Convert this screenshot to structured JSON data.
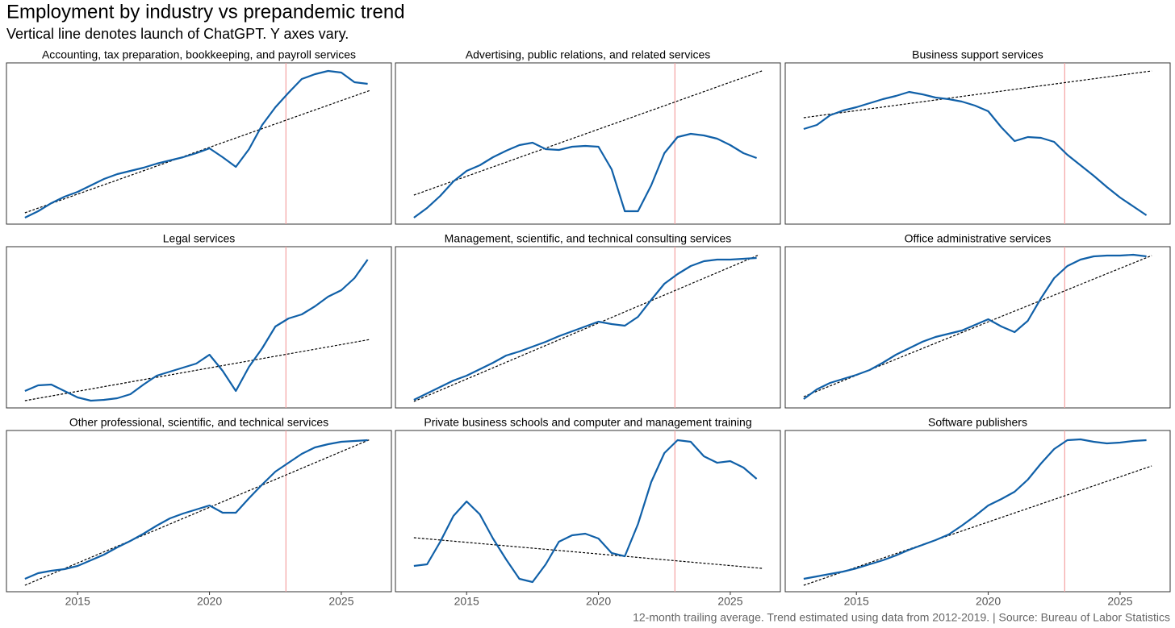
{
  "title": "Employment by industry vs prepandemic trend",
  "subtitle": "Vertical line denotes launch of ChatGPT. Y axes vary.",
  "caption": "12-month trailing average. Trend estimated using data from 2012-2019. | Source: Bureau of Labor Statistics",
  "chart_data": [
    {
      "type": "line",
      "title": "Accounting, tax preparation, bookkeeping, and payroll services",
      "x": [
        2013,
        2013.5,
        2014,
        2014.5,
        2015,
        2015.5,
        2016,
        2016.5,
        2017,
        2017.5,
        2018,
        2018.5,
        2019,
        2019.5,
        2020,
        2020.5,
        2021,
        2021.5,
        2022,
        2022.5,
        2023,
        2023.5,
        2024,
        2024.5,
        2025,
        2025.5,
        2026
      ],
      "series": [
        {
          "color": "#1060a8",
          "values": [
            4,
            8,
            13,
            17,
            20,
            24,
            28,
            31,
            33,
            35,
            37.5,
            39.5,
            41.5,
            44,
            47,
            41.5,
            35.5,
            46.5,
            61.5,
            72.5,
            81.5,
            90,
            93,
            95,
            94,
            88,
            87
          ]
        }
      ],
      "trend": {
        "x": [
          2013,
          2026.1
        ],
        "values": [
          7,
          83
        ],
        "color": "#000000",
        "dashed": true
      },
      "event_x": 2022.9,
      "event_color": "#f4a3a3",
      "xlim": [
        2012.3,
        2026.9
      ],
      "ylim": [
        0,
        100
      ]
    },
    {
      "type": "line",
      "title": "Advertising, public relations, and related services",
      "x": [
        2013,
        2013.5,
        2014,
        2014.5,
        2015,
        2015.5,
        2016,
        2016.5,
        2017,
        2017.5,
        2018,
        2018.5,
        2019,
        2019.5,
        2020,
        2020.5,
        2021,
        2021.5,
        2022,
        2022.5,
        2023,
        2023.5,
        2024,
        2024.5,
        2025,
        2025.5,
        2026
      ],
      "series": [
        {
          "color": "#1060a8",
          "values": [
            4,
            10,
            17.5,
            26.5,
            33,
            36.5,
            41.5,
            45.5,
            49,
            50.5,
            46.5,
            46,
            48,
            48.5,
            48,
            34,
            8,
            8,
            24,
            44,
            54,
            56,
            55,
            53,
            49,
            44,
            41
          ]
        }
      ],
      "trend": {
        "x": [
          2013,
          2026.2
        ],
        "values": [
          18,
          95
        ],
        "color": "#000000",
        "dashed": true
      },
      "event_x": 2022.9,
      "event_color": "#f4a3a3",
      "xlim": [
        2012.3,
        2026.9
      ],
      "ylim": [
        0,
        100
      ]
    },
    {
      "type": "line",
      "title": "Business support services",
      "x": [
        2013,
        2013.5,
        2014,
        2014.5,
        2015,
        2015.5,
        2016,
        2016.5,
        2017,
        2017.5,
        2018,
        2018.5,
        2019,
        2019.5,
        2020,
        2020.5,
        2021,
        2021.5,
        2022,
        2022.5,
        2023,
        2023.5,
        2024,
        2024.5,
        2025,
        2025.5,
        2026
      ],
      "series": [
        {
          "color": "#1060a8",
          "values": [
            59,
            61.5,
            67.5,
            70.5,
            72.5,
            75,
            77.5,
            79.5,
            82,
            80.5,
            78.5,
            77.5,
            76,
            73.5,
            70,
            60,
            51.5,
            54,
            53.5,
            51,
            43,
            36.5,
            30,
            23,
            16.5,
            11,
            5.5
          ]
        }
      ],
      "trend": {
        "x": [
          2013,
          2026.2
        ],
        "values": [
          66,
          95
        ],
        "color": "#000000",
        "dashed": true
      },
      "event_x": 2022.9,
      "event_color": "#f4a3a3",
      "xlim": [
        2012.3,
        2026.9
      ],
      "ylim": [
        0,
        100
      ]
    },
    {
      "type": "line",
      "title": "Legal services",
      "x": [
        2013,
        2013.5,
        2014,
        2014.5,
        2015,
        2015.5,
        2016,
        2016.5,
        2017,
        2017.5,
        2018,
        2018.5,
        2019,
        2019.5,
        2020,
        2020.5,
        2021,
        2021.5,
        2022,
        2022.5,
        2023,
        2023.5,
        2024,
        2024.5,
        2025,
        2025.5,
        2026
      ],
      "series": [
        {
          "color": "#1060a8",
          "values": [
            10.5,
            14,
            14.5,
            10.5,
            6.5,
            4.5,
            5,
            6,
            8.5,
            14.5,
            20,
            22.5,
            25,
            27.5,
            33,
            23,
            10.5,
            25.5,
            37,
            50.5,
            55.5,
            58,
            63,
            69,
            73,
            80.5,
            92
          ]
        }
      ],
      "trend": {
        "x": [
          2013,
          2026.1
        ],
        "values": [
          4.5,
          42.5
        ],
        "color": "#000000",
        "dashed": true
      },
      "event_x": 2022.9,
      "event_color": "#f4a3a3",
      "xlim": [
        2012.3,
        2026.9
      ],
      "ylim": [
        0,
        100
      ]
    },
    {
      "type": "line",
      "title": "Management, scientific, and technical consulting services",
      "x": [
        2013,
        2013.5,
        2014,
        2014.5,
        2015,
        2015.5,
        2016,
        2016.5,
        2017,
        2017.5,
        2018,
        2018.5,
        2019,
        2019.5,
        2020,
        2020.5,
        2021,
        2021.5,
        2022,
        2022.5,
        2023,
        2023.5,
        2024,
        2024.5,
        2025,
        2025.5,
        2026
      ],
      "series": [
        {
          "color": "#1060a8",
          "values": [
            5,
            9,
            13,
            17,
            20,
            24,
            28,
            32.5,
            35,
            38,
            41,
            44.5,
            47.5,
            50.5,
            53.5,
            52,
            51,
            56.5,
            67,
            77,
            83,
            88,
            91,
            92,
            92,
            92.5,
            93
          ]
        }
      ],
      "trend": {
        "x": [
          2013,
          2026.1
        ],
        "values": [
          4,
          95
        ],
        "color": "#000000",
        "dashed": true
      },
      "event_x": 2022.9,
      "event_color": "#f4a3a3",
      "xlim": [
        2012.3,
        2026.9
      ],
      "ylim": [
        0,
        100
      ]
    },
    {
      "type": "line",
      "title": "Office administrative services",
      "x": [
        2013,
        2013.5,
        2014,
        2014.5,
        2015,
        2015.5,
        2016,
        2016.5,
        2017,
        2017.5,
        2018,
        2018.5,
        2019,
        2019.5,
        2020,
        2020.5,
        2021,
        2021.5,
        2022,
        2022.5,
        2023,
        2023.5,
        2024,
        2024.5,
        2025,
        2025.5,
        2026
      ],
      "series": [
        {
          "color": "#1060a8",
          "values": [
            5.5,
            11.5,
            15.5,
            18,
            20.5,
            23.5,
            28,
            33,
            37,
            41,
            44,
            46,
            48,
            51.5,
            55,
            50.5,
            47,
            54,
            68,
            80.5,
            88,
            92,
            94,
            94.5,
            94.5,
            95,
            94
          ]
        }
      ],
      "trend": {
        "x": [
          2013,
          2026.2
        ],
        "values": [
          7,
          94.5
        ],
        "color": "#000000",
        "dashed": true
      },
      "event_x": 2022.9,
      "event_color": "#f4a3a3",
      "xlim": [
        2012.3,
        2026.9
      ],
      "ylim": [
        0,
        100
      ]
    },
    {
      "type": "line",
      "title": "Other professional, scientific, and technical services",
      "x": [
        2013,
        2013.5,
        2014,
        2014.5,
        2015,
        2015.5,
        2016,
        2016.5,
        2017,
        2017.5,
        2018,
        2018.5,
        2019,
        2019.5,
        2020,
        2020.5,
        2021,
        2021.5,
        2022,
        2022.5,
        2023,
        2023.5,
        2024,
        2024.5,
        2025,
        2025.5,
        2026
      ],
      "series": [
        {
          "color": "#1060a8",
          "values": [
            8,
            11.5,
            13,
            14,
            16,
            19.5,
            23,
            27.5,
            31.5,
            36,
            41,
            45.5,
            48.5,
            51,
            53.5,
            49,
            49,
            58,
            66.5,
            74.5,
            80,
            85.5,
            89.5,
            91.5,
            93,
            93.5,
            94
          ]
        }
      ],
      "trend": {
        "x": [
          2013,
          2026.1
        ],
        "values": [
          4,
          94.5
        ],
        "color": "#000000",
        "dashed": true
      },
      "event_x": 2022.9,
      "event_color": "#f4a3a3",
      "xlim": [
        2012.3,
        2026.9
      ],
      "ylim": [
        0,
        100
      ],
      "xticks": [
        2015,
        2020,
        2025
      ]
    },
    {
      "type": "line",
      "title": "Private business schools and computer and management training",
      "x": [
        2013,
        2013.5,
        2014,
        2014.5,
        2015,
        2015.5,
        2016,
        2016.5,
        2017,
        2017.5,
        2018,
        2018.5,
        2019,
        2019.5,
        2020,
        2020.5,
        2021,
        2021.5,
        2022,
        2022.5,
        2023,
        2023.5,
        2024,
        2024.5,
        2025,
        2025.5,
        2026
      ],
      "series": [
        {
          "color": "#1060a8",
          "values": [
            16,
            17,
            31,
            47,
            56,
            48,
            33,
            20,
            8,
            6,
            17,
            31,
            35,
            36,
            33,
            24,
            22,
            42,
            68,
            86,
            94,
            93,
            84,
            80,
            81,
            77,
            70
          ]
        }
      ],
      "trend": {
        "x": [
          2013,
          2026.2
        ],
        "values": [
          33.5,
          14.5
        ],
        "color": "#000000",
        "dashed": true
      },
      "event_x": 2022.9,
      "event_color": "#f4a3a3",
      "xlim": [
        2012.3,
        2026.9
      ],
      "ylim": [
        0,
        100
      ],
      "xticks": [
        2015,
        2020,
        2025
      ]
    },
    {
      "type": "line",
      "title": "Software publishers",
      "x": [
        2013,
        2013.5,
        2014,
        2014.5,
        2015,
        2015.5,
        2016,
        2016.5,
        2017,
        2017.5,
        2018,
        2018.5,
        2019,
        2019.5,
        2020,
        2020.5,
        2021,
        2021.5,
        2022,
        2022.5,
        2023,
        2023.5,
        2024,
        2024.5,
        2025,
        2025.5,
        2026
      ],
      "series": [
        {
          "color": "#1060a8",
          "values": [
            8,
            9.5,
            11,
            12.5,
            14.5,
            17,
            19.5,
            22.5,
            26,
            29,
            32,
            35.5,
            41,
            47,
            53.5,
            57.5,
            62,
            69.5,
            79.5,
            88.5,
            94,
            94.5,
            93,
            92,
            92.5,
            93.5,
            94
          ]
        }
      ],
      "trend": {
        "x": [
          2013,
          2026.2
        ],
        "values": [
          4,
          78
        ],
        "color": "#000000",
        "dashed": true
      },
      "event_x": 2022.9,
      "event_color": "#f4a3a3",
      "xlim": [
        2012.3,
        2026.9
      ],
      "ylim": [
        0,
        100
      ],
      "xticks": [
        2015,
        2020,
        2025
      ]
    }
  ]
}
